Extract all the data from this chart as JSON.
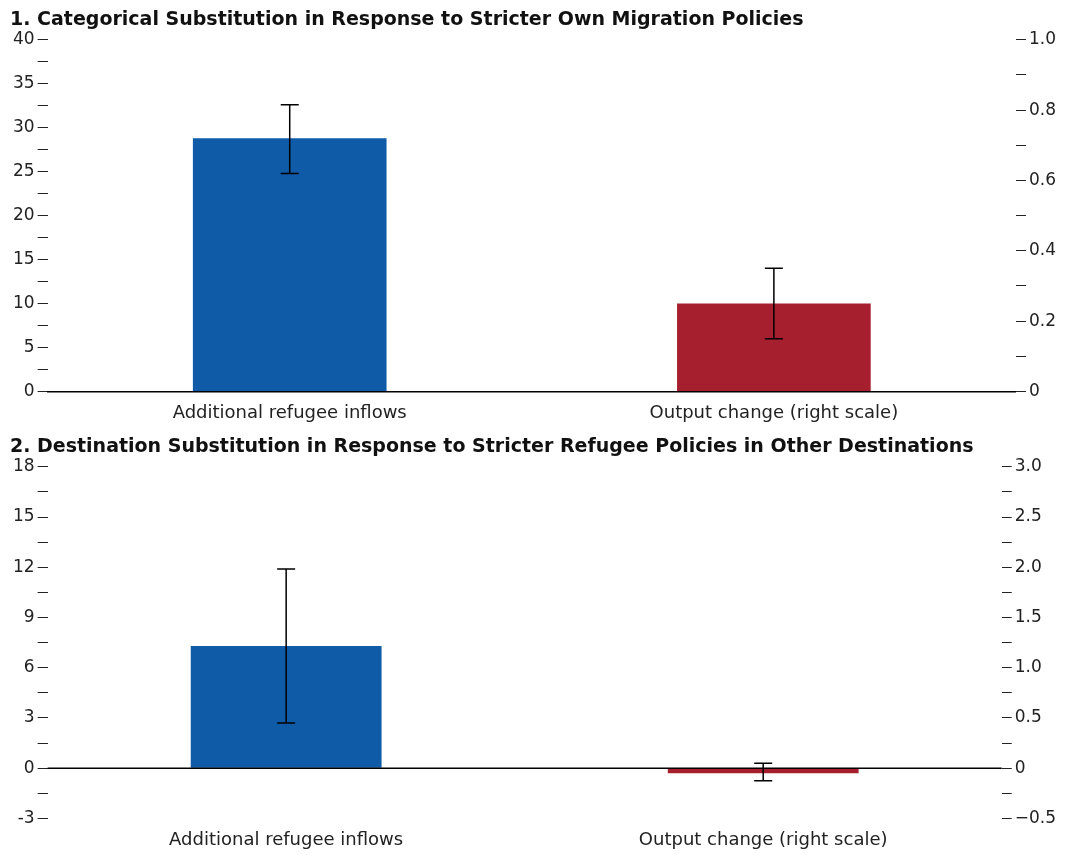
{
  "chart_data": [
    {
      "type": "bar",
      "title": "1. Categorical Substitution in Response to Stricter Own Migration Policies",
      "categories": [
        "Additional refugee inflows",
        "Output change (right scale)"
      ],
      "series": [
        {
          "color": "#0f5ba8",
          "values": [
            28.8,
            null
          ],
          "errors": [
            [
              24.8,
              32.6
            ],
            null
          ]
        },
        {
          "color": "#a51f2e",
          "values": [
            null,
            0.25
          ],
          "axis": "y2",
          "errors": [
            null,
            [
              0.15,
              0.35
            ]
          ]
        }
      ],
      "ylim": [
        0,
        40
      ],
      "yticks": [
        0,
        {
          "value": 2.5,
          "label": null
        },
        5,
        {
          "value": 7.5,
          "label": null
        },
        10,
        {
          "value": 12.5,
          "label": null
        },
        15,
        {
          "value": 17.5,
          "label": null
        },
        20,
        {
          "value": 22.5,
          "label": null
        },
        25,
        {
          "value": 27.5,
          "label": null
        },
        30,
        {
          "value": 32.5,
          "label": null
        },
        35,
        {
          "value": 37.5,
          "label": null
        },
        40
      ],
      "y2lim": [
        0,
        1.0
      ],
      "y2ticks": [
        0,
        {
          "value": 0.1,
          "label": null
        },
        {
          "value": 0.2,
          "label": "0.2"
        },
        {
          "value": 0.3,
          "label": null
        },
        {
          "value": 0.4,
          "label": "0.4"
        },
        {
          "value": 0.5,
          "label": null
        },
        {
          "value": 0.6,
          "label": "0.6"
        },
        {
          "value": 0.7,
          "label": null
        },
        {
          "value": 0.8,
          "label": "0.8"
        },
        {
          "value": 0.9,
          "label": null
        },
        {
          "value": 1.0,
          "label": "1.0"
        }
      ]
    },
    {
      "type": "bar",
      "title": "2. Destination Substitution in Response to Stricter Refugee Policies in Other Destinations",
      "categories": [
        "Additional refugee inflows",
        "Output change (right scale)"
      ],
      "series": [
        {
          "color": "#0f5ba8",
          "values": [
            7.3,
            null
          ],
          "errors": [
            [
              2.7,
              11.9
            ],
            null
          ]
        },
        {
          "color": "#a51f2e",
          "values": [
            null,
            -0.05
          ],
          "axis": "y2",
          "errors": [
            null,
            [
              -0.125,
              0.05
            ]
          ]
        }
      ],
      "ylim": [
        -3,
        18
      ],
      "yticks": [
        -3,
        {
          "value": -1.5,
          "label": null
        },
        0,
        {
          "value": 1.5,
          "label": null
        },
        3,
        {
          "value": 4.5,
          "label": null
        },
        6,
        {
          "value": 7.5,
          "label": null
        },
        9,
        {
          "value": 10.5,
          "label": null
        },
        12,
        {
          "value": 13.5,
          "label": null
        },
        15,
        {
          "value": 16.5,
          "label": null
        },
        18
      ],
      "y2lim": [
        -0.5,
        3.0
      ],
      "y2ticks": [
        {
          "value": -0.5,
          "label": "−0.5"
        },
        {
          "value": -0.25,
          "label": null
        },
        0,
        {
          "value": 0.25,
          "label": null
        },
        {
          "value": 0.5,
          "label": "0.5"
        },
        {
          "value": 0.75,
          "label": null
        },
        {
          "value": 1.0,
          "label": "1.0"
        },
        {
          "value": 1.25,
          "label": null
        },
        {
          "value": 1.5,
          "label": "1.5"
        },
        {
          "value": 1.75,
          "label": null
        },
        {
          "value": 2.0,
          "label": "2.0"
        },
        {
          "value": 2.25,
          "label": null
        },
        {
          "value": 2.5,
          "label": "2.5"
        },
        {
          "value": 2.75,
          "label": null
        },
        {
          "value": 3.0,
          "label": "3.0"
        }
      ],
      "ref_lines": [
        {
          "axis": "y",
          "value": 0,
          "color": "#000000"
        }
      ]
    }
  ]
}
